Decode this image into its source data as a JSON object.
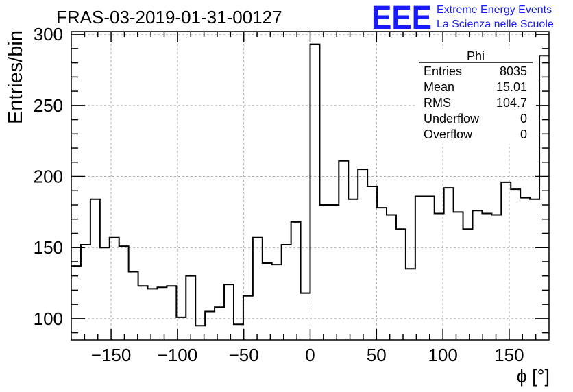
{
  "chart_data": {
    "type": "histogram",
    "title": "FRAS-03-2019-01-31-00127",
    "xlabel": "ϕ [°]",
    "ylabel": "Entries/bin",
    "xlim": [
      -180,
      180
    ],
    "ylim": [
      85,
      302
    ],
    "grid": true,
    "bin_width": 7.2,
    "x_ticks": [
      -150,
      -100,
      -50,
      0,
      50,
      100,
      150
    ],
    "x_tick_labels": [
      "−150",
      "−100",
      "−50",
      "0",
      "50",
      "100",
      "150"
    ],
    "y_ticks": [
      100,
      150,
      200,
      250,
      300
    ],
    "y_tick_labels": [
      "100",
      "150",
      "200",
      "250",
      "300"
    ],
    "values": [
      137,
      152,
      184,
      150,
      157,
      151,
      133,
      123,
      121,
      122,
      123,
      101,
      130,
      95,
      105,
      108,
      124,
      96,
      116,
      157,
      139,
      138,
      152,
      168,
      118,
      293,
      180,
      180,
      211,
      184,
      205,
      193,
      178,
      173,
      163,
      135,
      186,
      186,
      174,
      192,
      175,
      163,
      176,
      174,
      173,
      196,
      191,
      185,
      184,
      285
    ],
    "stats": {
      "title": "Phi",
      "rows": [
        {
          "label": "Entries",
          "value": "8035"
        },
        {
          "label": "Mean",
          "value": "15.01"
        },
        {
          "label": "RMS",
          "value": "104.7"
        },
        {
          "label": "Underflow",
          "value": "0"
        },
        {
          "label": "Overflow",
          "value": "0"
        }
      ]
    }
  },
  "logo": {
    "mark": "EEE",
    "line1": "Extreme Energy Events",
    "line2": "La Scienza nelle Scuole",
    "color": "#1a1aff"
  }
}
